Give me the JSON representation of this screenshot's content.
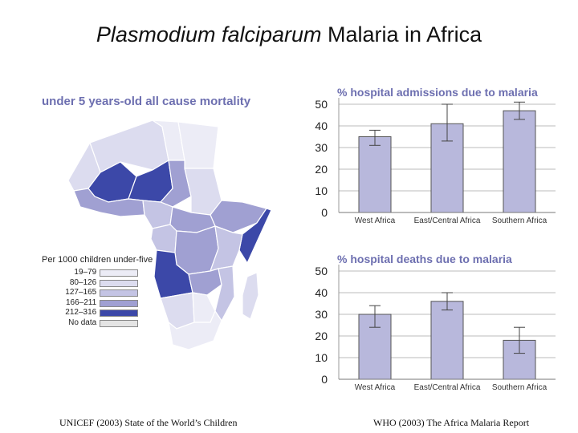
{
  "slide": {
    "title_italic": "Plasmodium falciparum",
    "title_rest": " Malaria in Africa"
  },
  "map": {
    "title": "under 5 years-old all cause mortality",
    "legend_title": "Per 1000 children under-five",
    "legend": [
      {
        "label": "19–79",
        "color": "#ececf6"
      },
      {
        "label": "80–126",
        "color": "#dcdcef"
      },
      {
        "label": "127–165",
        "color": "#c4c4e4"
      },
      {
        "label": "166–211",
        "color": "#a0a0d2"
      },
      {
        "label": "212–316",
        "color": "#3c48a8"
      },
      {
        "label": "No data",
        "color": "#e4e4e4"
      }
    ]
  },
  "chart_data": [
    {
      "type": "bar",
      "title": "% hospital admissions due to malaria",
      "categories": [
        "West Africa",
        "East/Central Africa",
        "Southern Africa"
      ],
      "values": [
        35,
        41,
        47
      ],
      "error_low": [
        31,
        33,
        43
      ],
      "error_high": [
        38,
        50,
        51
      ],
      "ylim": [
        0,
        50
      ],
      "yticks": [
        0,
        10,
        20,
        30,
        40,
        50
      ],
      "xlabel": "",
      "ylabel": "",
      "bar_color": "#b8b8dc"
    },
    {
      "type": "bar",
      "title": "% hospital deaths due to malaria",
      "categories": [
        "West Africa",
        "East/Central Africa",
        "Southern Africa"
      ],
      "values": [
        30,
        36,
        18
      ],
      "error_low": [
        24,
        32,
        12
      ],
      "error_high": [
        34,
        40,
        24
      ],
      "ylim": [
        0,
        50
      ],
      "yticks": [
        0,
        10,
        20,
        30,
        40,
        50
      ],
      "xlabel": "",
      "ylabel": "",
      "bar_color": "#b8b8dc"
    }
  ],
  "credits": {
    "left": "UNICEF (2003) State of the World’s Children",
    "right": "WHO (2003) The Africa Malaria Report"
  }
}
